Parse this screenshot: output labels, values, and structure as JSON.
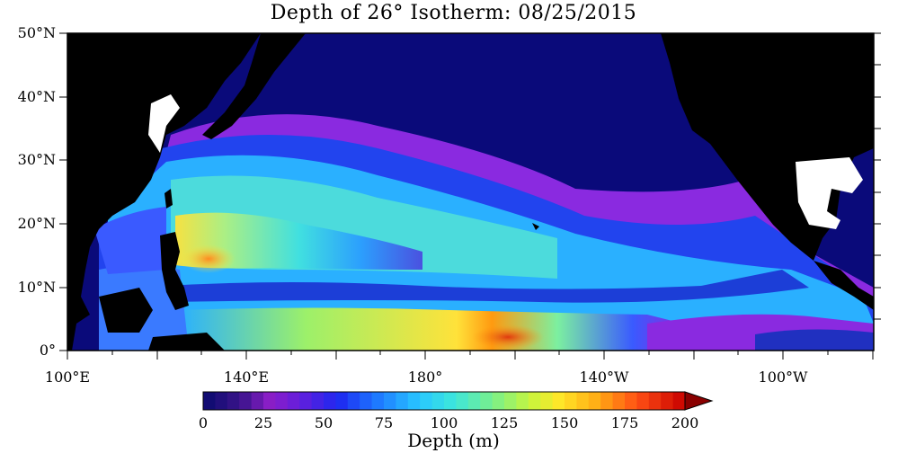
{
  "title": "Depth of 26° Isotherm: 08/25/2015",
  "y_labels": [
    "50°N",
    "40°N",
    "30°N",
    "20°N",
    "10°N",
    "0°"
  ],
  "x_labels": [
    "100°E",
    "140°E",
    "180°",
    "140°W",
    "100°W"
  ],
  "colorbar": {
    "labels": [
      "0",
      "25",
      "50",
      "75",
      "100",
      "125",
      "150",
      "175",
      "200"
    ],
    "title": "Depth (m)",
    "range": [
      0,
      200
    ]
  },
  "colors": {
    "land": "#000000",
    "shallow": "#0a0a7a",
    "deep": "#b30000",
    "frame": "#000000"
  }
}
